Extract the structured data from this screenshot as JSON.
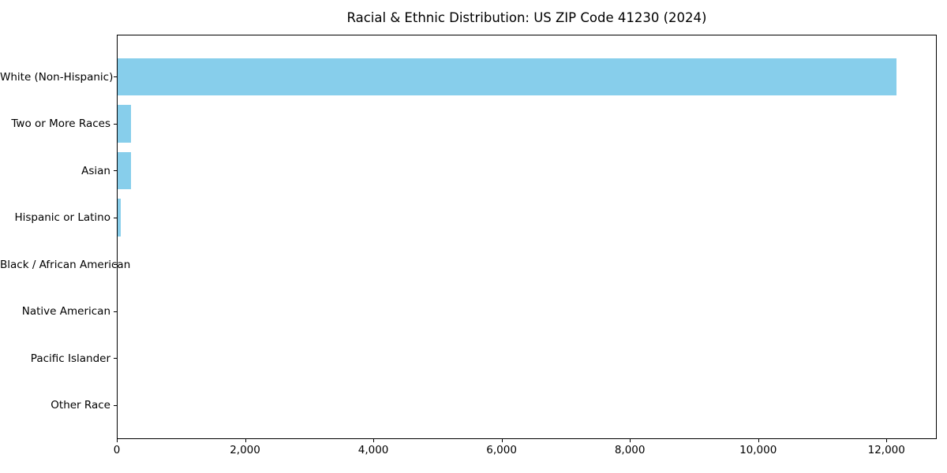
{
  "title": "Racial & Ethnic Distribution: US ZIP Code 41230 (2024)",
  "colors": {
    "bar": "#87CEEB",
    "axis": "#000000",
    "background": "#FFFFFF",
    "text": "#000000"
  },
  "chart_data": {
    "type": "bar",
    "orientation": "horizontal",
    "title": "Racial & Ethnic Distribution: US ZIP Code 41230 (2024)",
    "categories": [
      "White (Non-Hispanic)",
      "Two or More Races",
      "Asian",
      "Hispanic or Latino",
      "Black / African American",
      "Native American",
      "Pacific Islander",
      "Other Race"
    ],
    "values": [
      12150,
      215,
      205,
      55,
      0,
      0,
      0,
      0
    ],
    "xlabel": "",
    "ylabel": "",
    "xlim": [
      0,
      12760
    ],
    "xticks": [
      0,
      2000,
      4000,
      6000,
      8000,
      10000,
      12000
    ],
    "xtick_labels": [
      "0",
      "2,000",
      "4,000",
      "6,000",
      "8,000",
      "10,000",
      "12,000"
    ],
    "bar_color": "#87CEEB",
    "grid": false,
    "legend": null
  }
}
